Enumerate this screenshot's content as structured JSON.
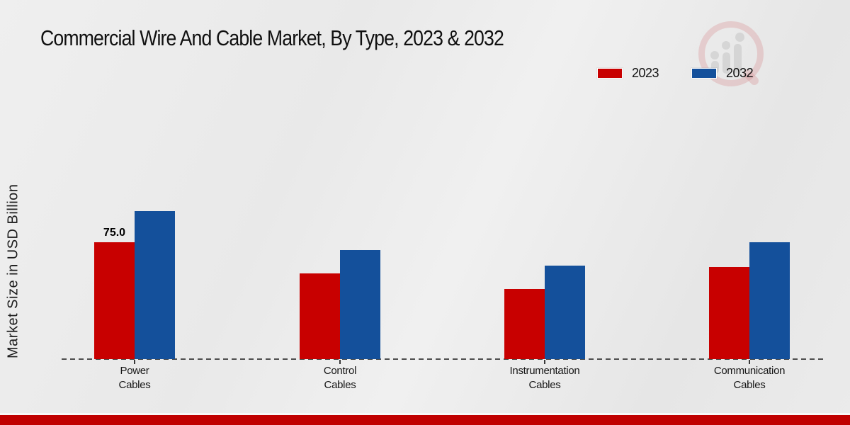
{
  "header": {
    "title": "Commercial Wire And Cable Market, By Type, 2023 & 2032"
  },
  "legend": {
    "items": [
      {
        "label": "2023",
        "color": "#c80000"
      },
      {
        "label": "2032",
        "color": "#14509b"
      }
    ]
  },
  "colors": {
    "bar_2023": "#c80000",
    "bar_2032": "#14509b",
    "footer_bar": "#c00000",
    "baseline": "#4d4d4d",
    "background": "#eaeaea"
  },
  "chart_data": {
    "type": "bar",
    "title": "Commercial Wire And Cable Market, By Type, 2023 & 2032",
    "xlabel": "",
    "ylabel": "Market Size in USD Billion",
    "categories": [
      "Power Cables",
      "Control Cables",
      "Instrumentation Cables",
      "Communication Cables"
    ],
    "category_label_lines": [
      [
        "Power",
        "Cables"
      ],
      [
        "Control",
        "Cables"
      ],
      [
        "Instrumentation",
        "Cables"
      ],
      [
        "Communication",
        "Cables"
      ]
    ],
    "series": [
      {
        "name": "2023",
        "color": "#c80000",
        "values": [
          75.0,
          55.0,
          45.0,
          59.0
        ]
      },
      {
        "name": "2032",
        "color": "#14509b",
        "values": [
          95.0,
          70.0,
          60.0,
          75.0
        ]
      }
    ],
    "data_labels": [
      {
        "series": "2023",
        "category": "Power Cables",
        "text": "75.0"
      }
    ],
    "ylim": [
      0,
      100
    ],
    "y_axis_ticks_visible": false,
    "grid": false,
    "baseline_style": "dashed",
    "legend_position": "top-right"
  }
}
